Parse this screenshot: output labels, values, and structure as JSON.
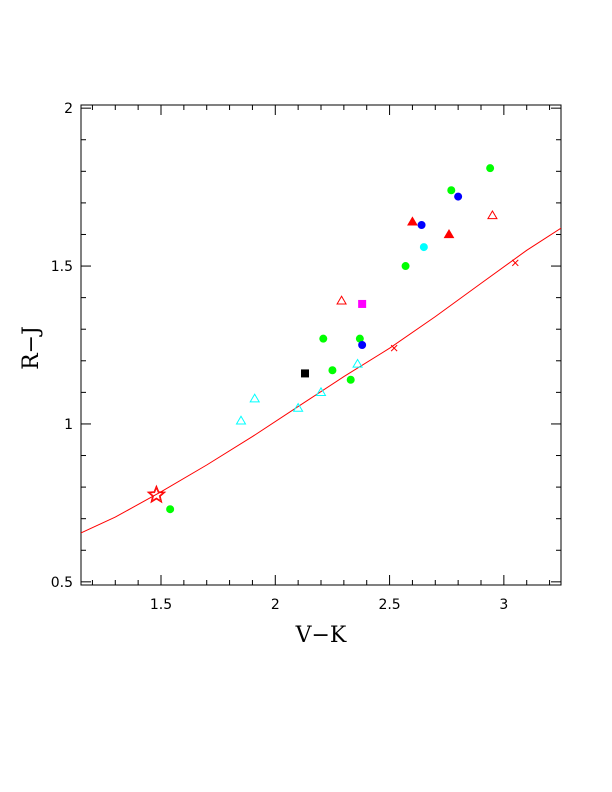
{
  "chart_data": {
    "type": "scatter",
    "xlabel": "V−K",
    "ylabel": "R−J",
    "xlim": [
      1.15,
      3.25
    ],
    "ylim": [
      0.49,
      2.01
    ],
    "grid": false,
    "x_ticks": [
      {
        "value": 1.5,
        "label": "1.5"
      },
      {
        "value": 2,
        "label": "2"
      },
      {
        "value": 2.5,
        "label": "2.5"
      },
      {
        "value": 3,
        "label": "3"
      }
    ],
    "y_ticks": [
      {
        "value": 0.5,
        "label": "0.5"
      },
      {
        "value": 1,
        "label": "1"
      },
      {
        "value": 1.5,
        "label": "1.5"
      },
      {
        "value": 2,
        "label": "2"
      }
    ],
    "curve": {
      "color": "#ff0000",
      "points": [
        [
          1.15,
          0.655
        ],
        [
          1.3,
          0.705
        ],
        [
          1.5,
          0.785
        ],
        [
          1.7,
          0.87
        ],
        [
          1.9,
          0.96
        ],
        [
          2.1,
          1.055
        ],
        [
          2.3,
          1.15
        ],
        [
          2.5,
          1.24
        ],
        [
          2.7,
          1.34
        ],
        [
          2.9,
          1.445
        ],
        [
          3.1,
          1.55
        ],
        [
          3.25,
          1.62
        ]
      ]
    },
    "series": [
      {
        "marker": "circle",
        "color": "#00ff00",
        "filled": true,
        "points": [
          [
            1.54,
            0.73
          ],
          [
            2.21,
            1.27
          ],
          [
            2.25,
            1.17
          ],
          [
            2.33,
            1.14
          ],
          [
            2.37,
            1.27
          ],
          [
            2.57,
            1.5
          ],
          [
            2.77,
            1.74
          ],
          [
            2.94,
            1.81
          ]
        ]
      },
      {
        "marker": "circle",
        "color": "#0000ff",
        "filled": true,
        "points": [
          [
            2.38,
            1.25
          ],
          [
            2.64,
            1.63
          ],
          [
            2.8,
            1.72
          ]
        ]
      },
      {
        "marker": "circle",
        "color": "#00ffff",
        "filled": true,
        "points": [
          [
            2.65,
            1.56
          ]
        ]
      },
      {
        "marker": "square",
        "color": "#000000",
        "filled": true,
        "points": [
          [
            2.13,
            1.16
          ]
        ]
      },
      {
        "marker": "square",
        "color": "#ff00ff",
        "filled": true,
        "points": [
          [
            2.38,
            1.38
          ]
        ]
      },
      {
        "marker": "triangle",
        "color": "#ff0000",
        "filled": true,
        "points": [
          [
            2.6,
            1.64
          ],
          [
            2.76,
            1.6
          ]
        ]
      },
      {
        "marker": "triangle",
        "color": "#ff0000",
        "filled": false,
        "points": [
          [
            2.29,
            1.39
          ],
          [
            2.95,
            1.66
          ]
        ]
      },
      {
        "marker": "triangle",
        "color": "#00ffff",
        "filled": false,
        "points": [
          [
            1.85,
            1.01
          ],
          [
            1.91,
            1.08
          ],
          [
            2.1,
            1.05
          ],
          [
            2.2,
            1.1
          ],
          [
            2.36,
            1.19
          ]
        ]
      },
      {
        "marker": "cross",
        "color": "#ff0000",
        "filled": false,
        "points": [
          [
            2.52,
            1.24
          ],
          [
            3.05,
            1.51
          ]
        ]
      },
      {
        "marker": "star",
        "color": "#ff0000",
        "filled": false,
        "points": [
          [
            1.48,
            0.775
          ]
        ]
      }
    ]
  }
}
